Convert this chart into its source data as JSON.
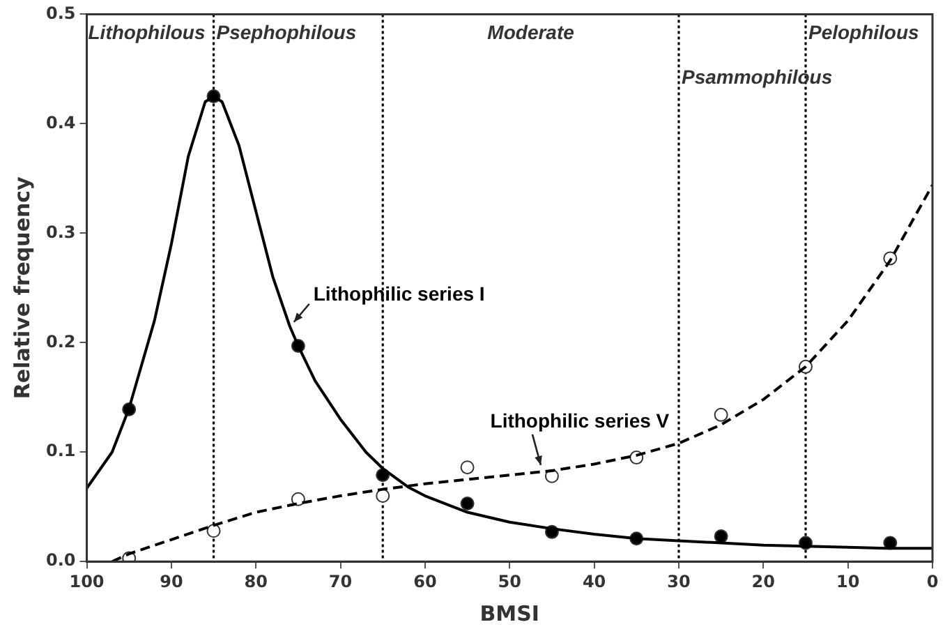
{
  "chart_data": {
    "type": "scatter",
    "xlabel": "BMSI",
    "ylabel": "Relative frequency",
    "xlim": [
      100,
      0
    ],
    "xticks": [
      100,
      90,
      80,
      70,
      60,
      50,
      40,
      30,
      20,
      10,
      0
    ],
    "ylim": [
      0,
      0.5
    ],
    "yticks": [
      {
        "value": 0,
        "label": "0.0"
      },
      {
        "value": 0.1,
        "label": "0.1"
      },
      {
        "value": 0.2,
        "label": "0.2"
      },
      {
        "value": 0.3,
        "label": "0.3"
      },
      {
        "value": 0.4,
        "label": "0.4"
      },
      {
        "value": 0.5,
        "label": "0.5"
      }
    ],
    "grid": false,
    "legend": false,
    "series": [
      {
        "type": "line",
        "name": "Lithophilic series I",
        "color": "#000000",
        "line_style": "solid",
        "marker": "none",
        "x": [
          100,
          97,
          95,
          92,
          90,
          88,
          86,
          85,
          84,
          82,
          80,
          78,
          76,
          75,
          73,
          70,
          67,
          65,
          62,
          60,
          55,
          50,
          45,
          40,
          35,
          30,
          25,
          20,
          15,
          10,
          5,
          0
        ],
        "values": [
          0.067,
          0.1,
          0.14,
          0.22,
          0.29,
          0.37,
          0.42,
          0.425,
          0.42,
          0.38,
          0.32,
          0.26,
          0.215,
          0.197,
          0.165,
          0.13,
          0.1,
          0.085,
          0.068,
          0.06,
          0.045,
          0.036,
          0.03,
          0.025,
          0.021,
          0.019,
          0.017,
          0.015,
          0.014,
          0.013,
          0.012,
          0.012
        ]
      },
      {
        "type": "line",
        "name": "Lithophilic series V",
        "color": "#000000",
        "line_style": "dashed",
        "marker": "none",
        "x": [
          97,
          95,
          90,
          85,
          80,
          75,
          70,
          65,
          60,
          55,
          50,
          45,
          40,
          35,
          30,
          25,
          20,
          15,
          10,
          5,
          0
        ],
        "values": [
          0,
          0.007,
          0.02,
          0.033,
          0.045,
          0.053,
          0.06,
          0.066,
          0.071,
          0.075,
          0.079,
          0.083,
          0.089,
          0.097,
          0.108,
          0.125,
          0.148,
          0.178,
          0.22,
          0.275,
          0.344
        ]
      },
      {
        "color": "#000000",
        "marker": "circle",
        "x": [
          95,
          85,
          75,
          65,
          55,
          45,
          35,
          25,
          15,
          5
        ],
        "values": [
          0.139,
          0.425,
          0.197,
          0.079,
          0.053,
          0.027,
          0.021,
          0.023,
          0.017,
          0.017
        ]
      },
      {
        "color": "#ffffff",
        "marker": "circle",
        "x": [
          95,
          85,
          75,
          65,
          55,
          45,
          35,
          25,
          15,
          5
        ],
        "values": [
          0.003,
          0.028,
          0.057,
          0.06,
          0.086,
          0.078,
          0.095,
          0.134,
          0.178,
          0.277
        ]
      }
    ],
    "ref_lines": [
      {
        "axis": "x",
        "value": 85,
        "color": "#000000",
        "line_style": "dotted",
        "label": "Psephophilous"
      },
      {
        "axis": "x",
        "value": 65,
        "color": "#000000",
        "line_style": "dotted"
      },
      {
        "axis": "x",
        "value": 30,
        "color": "#000000",
        "line_style": "dotted",
        "label": "Psammophilous"
      },
      {
        "axis": "x",
        "value": 15,
        "color": "#000000",
        "line_style": "dotted",
        "label": "Pelophilous"
      }
    ],
    "annotations": [
      "Lithophilous",
      "Moderate"
    ]
  }
}
